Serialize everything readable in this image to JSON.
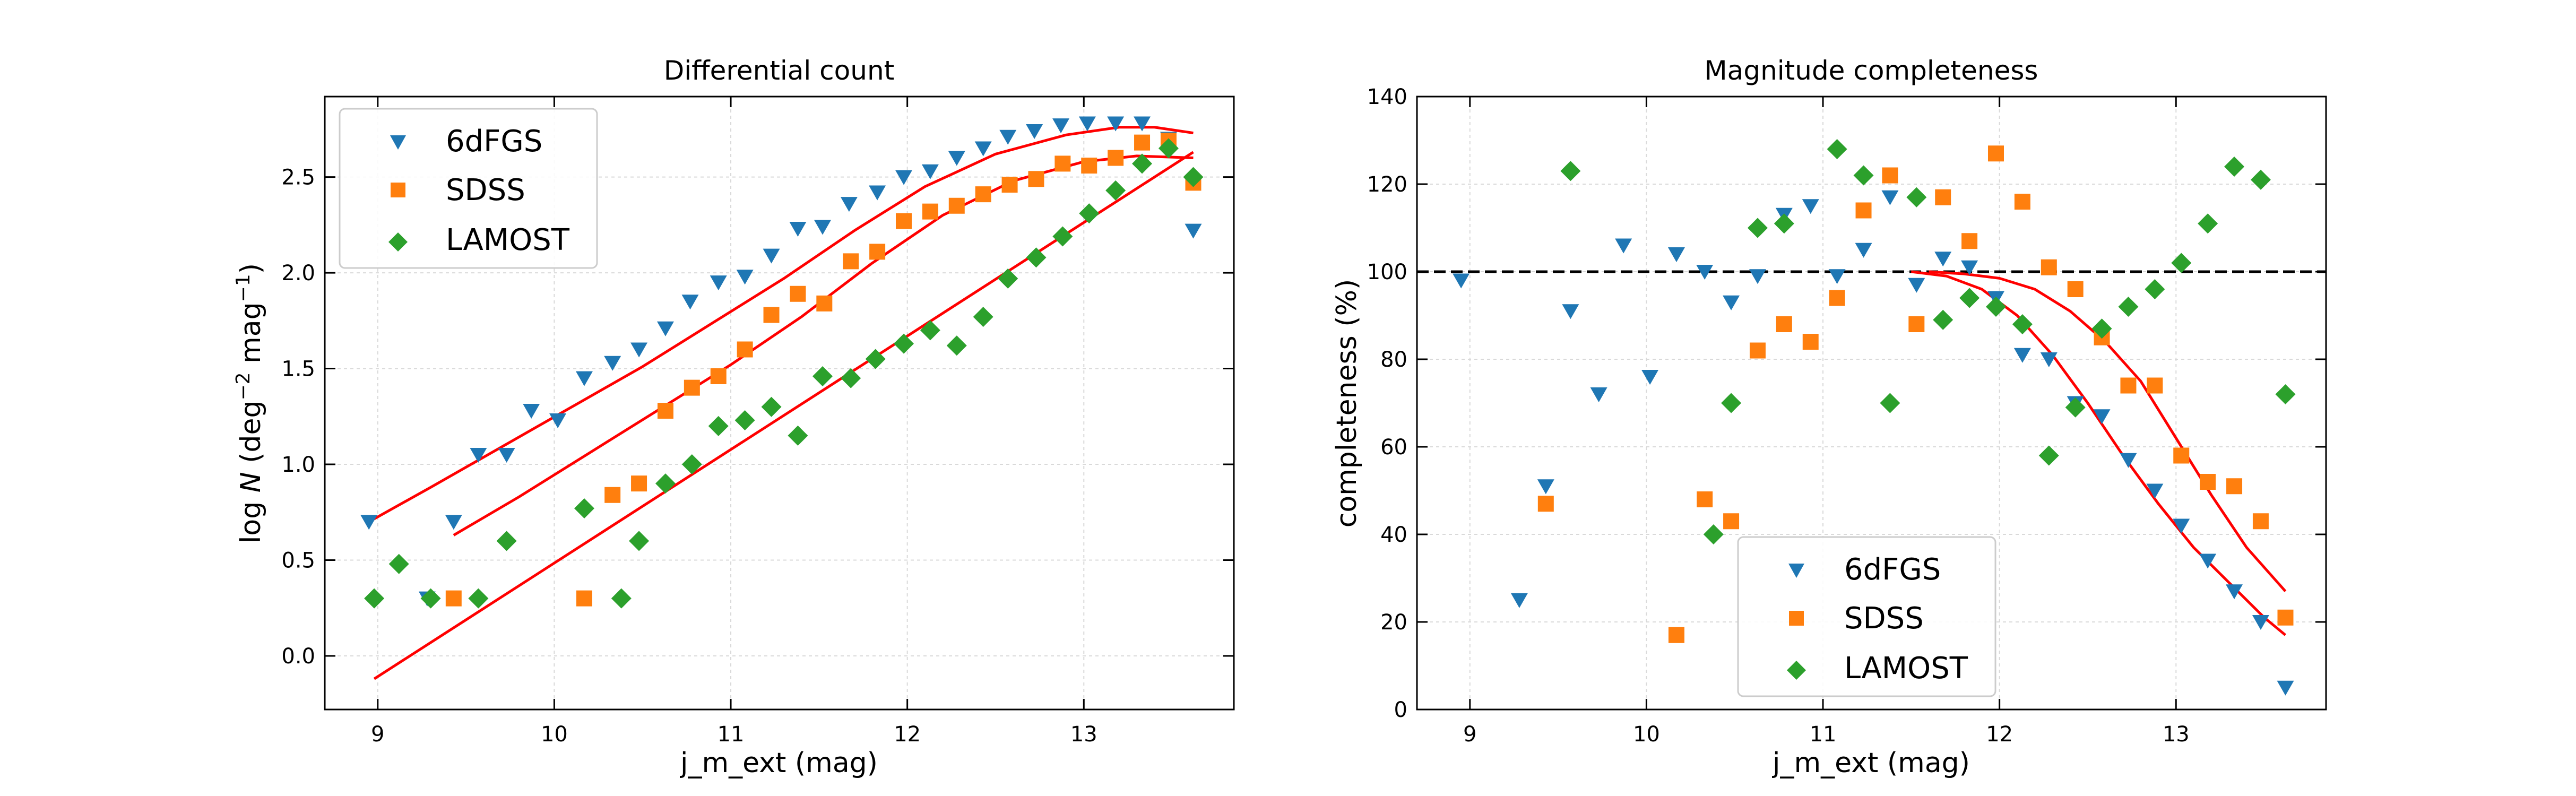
{
  "chart_data": [
    {
      "type": "scatter",
      "title": "Differential count",
      "xlabel": "j_m_ext (mag)",
      "ylabel": {
        "prefix": "log ",
        "italic": "N",
        "open": " (deg",
        "sup1": "−2",
        "mid": " mag",
        "sup2": "−1",
        "close": ")"
      },
      "xlim": [
        8.7,
        13.85
      ],
      "ylim": [
        -0.28,
        2.92
      ],
      "xticks": [
        {
          "v": 9,
          "label": "9"
        },
        {
          "v": 10,
          "label": "10"
        },
        {
          "v": 11,
          "label": "11"
        },
        {
          "v": 12,
          "label": "12"
        },
        {
          "v": 13,
          "label": "13"
        }
      ],
      "yticks": [
        {
          "v": 0,
          "label": "0.0"
        },
        {
          "v": 0.5,
          "label": "0.5"
        },
        {
          "v": 1,
          "label": "1.0"
        },
        {
          "v": 1.5,
          "label": "1.5"
        },
        {
          "v": 2,
          "label": "2.0"
        },
        {
          "v": 2.5,
          "label": "2.5"
        }
      ],
      "grid": true,
      "legend": {
        "position": "upper-left",
        "entries": [
          "6dFGS",
          "SDSS",
          "LAMOST"
        ]
      },
      "series": [
        {
          "name": "6dFGS",
          "color": "#1f77b4",
          "marker": "triangle-down",
          "x": [
            8.95,
            9.28,
            9.43,
            9.57,
            9.73,
            9.87,
            10.02,
            10.17,
            10.33,
            10.48,
            10.63,
            10.77,
            10.93,
            11.08,
            11.23,
            11.38,
            11.52,
            11.67,
            11.83,
            11.98,
            12.13,
            12.28,
            12.43,
            12.57,
            12.72,
            12.87,
            13.02,
            13.18,
            13.33,
            13.48,
            13.62
          ],
          "y": [
            0.7,
            0.3,
            0.7,
            1.05,
            1.05,
            1.28,
            1.23,
            1.45,
            1.53,
            1.6,
            1.71,
            1.85,
            1.95,
            1.98,
            2.09,
            2.23,
            2.24,
            2.36,
            2.42,
            2.5,
            2.53,
            2.6,
            2.65,
            2.71,
            2.74,
            2.77,
            2.78,
            2.78,
            2.78,
            2.7,
            2.22
          ]
        },
        {
          "name": "SDSS",
          "color": "#ff7f0e",
          "marker": "square",
          "x": [
            9.43,
            10.17,
            10.33,
            10.48,
            10.63,
            10.78,
            10.93,
            11.08,
            11.23,
            11.38,
            11.53,
            11.68,
            11.83,
            11.98,
            12.13,
            12.28,
            12.43,
            12.58,
            12.73,
            12.88,
            13.03,
            13.18,
            13.33,
            13.48,
            13.62
          ],
          "y": [
            0.3,
            0.3,
            0.84,
            0.9,
            1.28,
            1.4,
            1.46,
            1.6,
            1.78,
            1.89,
            1.84,
            2.06,
            2.11,
            2.27,
            2.32,
            2.35,
            2.41,
            2.46,
            2.49,
            2.57,
            2.56,
            2.6,
            2.68,
            2.69,
            2.47
          ]
        },
        {
          "name": "LAMOST",
          "color": "#2ca02c",
          "marker": "diamond",
          "x": [
            8.98,
            9.12,
            9.3,
            9.57,
            9.73,
            10.17,
            10.38,
            10.48,
            10.63,
            10.78,
            10.93,
            11.08,
            11.23,
            11.38,
            11.52,
            11.68,
            11.82,
            11.98,
            12.13,
            12.28,
            12.43,
            12.57,
            12.73,
            12.88,
            13.03,
            13.18,
            13.33,
            13.48,
            13.62
          ],
          "y": [
            0.3,
            0.48,
            0.3,
            0.3,
            0.6,
            0.77,
            0.3,
            0.6,
            0.9,
            1.0,
            1.2,
            1.23,
            1.3,
            1.15,
            1.46,
            1.45,
            1.55,
            1.63,
            1.7,
            1.62,
            1.77,
            1.97,
            2.08,
            2.19,
            2.31,
            2.43,
            2.57,
            2.65,
            2.5
          ]
        }
      ],
      "fit_lines": [
        {
          "color": "#ff0000",
          "x": [
            8.95,
            9.3,
            9.7,
            10.1,
            10.5,
            10.9,
            11.3,
            11.7,
            12.1,
            12.5,
            12.9,
            13.2,
            13.4,
            13.62
          ],
          "y": [
            0.7,
            0.88,
            1.09,
            1.3,
            1.51,
            1.74,
            1.97,
            2.22,
            2.45,
            2.62,
            2.72,
            2.76,
            2.76,
            2.73
          ]
        },
        {
          "color": "#ff0000",
          "x": [
            9.43,
            9.8,
            10.2,
            10.6,
            11.0,
            11.4,
            11.8,
            12.2,
            12.6,
            13.0,
            13.3,
            13.62
          ],
          "y": [
            0.63,
            0.83,
            1.06,
            1.29,
            1.52,
            1.77,
            2.05,
            2.3,
            2.48,
            2.58,
            2.61,
            2.6
          ]
        },
        {
          "color": "#ff0000",
          "x": [
            8.98,
            13.62
          ],
          "y": [
            -0.12,
            2.63
          ]
        }
      ]
    },
    {
      "type": "scatter",
      "title": "Magnitude completeness",
      "xlabel": "j_m_ext (mag)",
      "ylabel": {
        "text": "completeness (%)"
      },
      "xlim": [
        8.7,
        13.85
      ],
      "ylim": [
        0,
        140
      ],
      "xticks": [
        {
          "v": 9,
          "label": "9"
        },
        {
          "v": 10,
          "label": "10"
        },
        {
          "v": 11,
          "label": "11"
        },
        {
          "v": 12,
          "label": "12"
        },
        {
          "v": 13,
          "label": "13"
        }
      ],
      "yticks": [
        {
          "v": 0,
          "label": "0"
        },
        {
          "v": 20,
          "label": "20"
        },
        {
          "v": 40,
          "label": "40"
        },
        {
          "v": 60,
          "label": "60"
        },
        {
          "v": 80,
          "label": "80"
        },
        {
          "v": 100,
          "label": "100"
        },
        {
          "v": 120,
          "label": "120"
        },
        {
          "v": 140,
          "label": "140"
        }
      ],
      "grid": true,
      "legend": {
        "position": "lower-center",
        "entries": [
          "6dFGS",
          "SDSS",
          "LAMOST"
        ]
      },
      "reference_line": {
        "y": 100,
        "style": "dashed",
        "color": "#000000"
      },
      "series": [
        {
          "name": "6dFGS",
          "color": "#1f77b4",
          "marker": "triangle-down",
          "x": [
            8.95,
            9.28,
            9.43,
            9.57,
            9.73,
            9.87,
            10.02,
            10.17,
            10.33,
            10.48,
            10.63,
            10.78,
            10.93,
            11.08,
            11.23,
            11.38,
            11.53,
            11.68,
            11.83,
            11.98,
            12.13,
            12.28,
            12.43,
            12.58,
            12.73,
            12.88,
            13.03,
            13.18,
            13.33,
            13.48,
            13.62
          ],
          "y": [
            98,
            25,
            51,
            91,
            72,
            106,
            76,
            104,
            100,
            93,
            99,
            113,
            115,
            99,
            105,
            117,
            97,
            103,
            101,
            94,
            81,
            80,
            70,
            67,
            57,
            50,
            42,
            34,
            27,
            20,
            5
          ]
        },
        {
          "name": "SDSS",
          "color": "#ff7f0e",
          "marker": "square",
          "x": [
            9.43,
            10.17,
            10.33,
            10.48,
            10.63,
            10.78,
            10.93,
            11.08,
            11.23,
            11.38,
            11.53,
            11.68,
            11.83,
            11.98,
            12.13,
            12.28,
            12.43,
            12.58,
            12.73,
            12.88,
            13.03,
            13.18,
            13.33,
            13.48,
            13.62
          ],
          "y": [
            47,
            17,
            48,
            43,
            82,
            88,
            84,
            94,
            114,
            122,
            88,
            117,
            107,
            127,
            116,
            101,
            96,
            85,
            74,
            74,
            58,
            52,
            51,
            43,
            21
          ]
        },
        {
          "name": "LAMOST",
          "color": "#2ca02c",
          "marker": "diamond",
          "x": [
            9.57,
            10.38,
            10.48,
            10.63,
            10.78,
            11.08,
            11.23,
            11.38,
            11.53,
            11.68,
            11.83,
            11.98,
            12.13,
            12.28,
            12.43,
            12.58,
            12.73,
            12.88,
            13.03,
            13.18,
            13.33,
            13.48,
            13.62
          ],
          "y": [
            123,
            40,
            70,
            110,
            111,
            128,
            122,
            70,
            117,
            89,
            94,
            92,
            88,
            58,
            69,
            87,
            92,
            96,
            102,
            111,
            124,
            121,
            72
          ]
        }
      ],
      "fit_lines": [
        {
          "color": "#ff0000",
          "x": [
            11.5,
            11.7,
            11.9,
            12.1,
            12.3,
            12.5,
            12.7,
            12.9,
            13.1,
            13.3,
            13.5,
            13.62
          ],
          "y": [
            100,
            99,
            96,
            90,
            81,
            70,
            58,
            47,
            37,
            29,
            21,
            17
          ]
        },
        {
          "color": "#ff0000",
          "x": [
            11.6,
            11.8,
            12.0,
            12.2,
            12.4,
            12.6,
            12.8,
            13.0,
            13.2,
            13.4,
            13.62
          ],
          "y": [
            100,
            99.5,
            98.5,
            96,
            91,
            84,
            75,
            62,
            49,
            37,
            27
          ]
        }
      ]
    }
  ]
}
